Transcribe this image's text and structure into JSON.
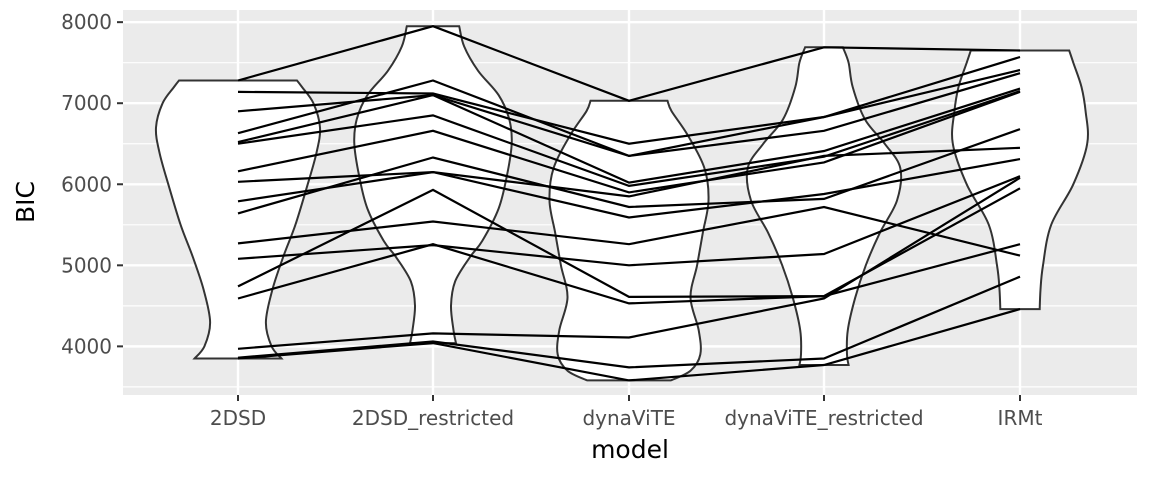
{
  "chart_data": {
    "type": "violin",
    "xlabel": "model",
    "ylabel": "BIC",
    "categories": [
      "2DSD",
      "2DSD_restricted",
      "dynaViTE",
      "dynaViTE_restricted",
      "IRMt"
    ],
    "y_ticks": [
      4000,
      5000,
      6000,
      7000,
      8000
    ],
    "ylim": [
      3400,
      8150
    ],
    "grid": true,
    "subjects": [
      [
        7280,
        7950,
        7030,
        7690,
        7650
      ],
      [
        7140,
        7120,
        6500,
        6830,
        7570
      ],
      [
        6630,
        7280,
        6350,
        6830,
        7410
      ],
      [
        6520,
        7100,
        6350,
        6660,
        7370
      ],
      [
        6900,
        7100,
        6020,
        6410,
        7180
      ],
      [
        6500,
        6850,
        5980,
        6340,
        7150
      ],
      [
        6160,
        6660,
        5900,
        6270,
        7140
      ],
      [
        6030,
        6150,
        5850,
        6350,
        6450
      ],
      [
        5640,
        6330,
        5720,
        5820,
        6680
      ],
      [
        5790,
        6150,
        5590,
        5880,
        6310
      ],
      [
        5270,
        5540,
        5260,
        5720,
        5120
      ],
      [
        5080,
        5250,
        5000,
        5140,
        6100
      ],
      [
        4740,
        5930,
        4610,
        4620,
        5950
      ],
      [
        4590,
        5260,
        4530,
        4620,
        5260
      ],
      [
        3970,
        4160,
        4110,
        4590,
        6080
      ],
      [
        3860,
        4060,
        3740,
        3850,
        4860
      ],
      [
        3850,
        4040,
        3580,
        3770,
        4460
      ]
    ],
    "violins": [
      {
        "category": "2DSD",
        "min": 3850,
        "max": 7280,
        "profile": [
          [
            3850,
            0.53
          ],
          [
            4000,
            0.41
          ],
          [
            4300,
            0.34
          ],
          [
            4700,
            0.42
          ],
          [
            5100,
            0.55
          ],
          [
            5500,
            0.7
          ],
          [
            6000,
            0.85
          ],
          [
            6400,
            0.96
          ],
          [
            6700,
            1.0
          ],
          [
            7000,
            0.92
          ],
          [
            7200,
            0.78
          ],
          [
            7280,
            0.72
          ]
        ]
      },
      {
        "category": "2DSD_restricted",
        "min": 4040,
        "max": 7950,
        "profile": [
          [
            4040,
            0.28
          ],
          [
            4200,
            0.25
          ],
          [
            4500,
            0.22
          ],
          [
            4800,
            0.27
          ],
          [
            5100,
            0.45
          ],
          [
            5300,
            0.6
          ],
          [
            5700,
            0.8
          ],
          [
            6100,
            0.9
          ],
          [
            6500,
            0.96
          ],
          [
            6800,
            0.93
          ],
          [
            7100,
            0.8
          ],
          [
            7400,
            0.55
          ],
          [
            7700,
            0.38
          ],
          [
            7950,
            0.32
          ]
        ]
      },
      {
        "category": "dynaViTE",
        "min": 3580,
        "max": 7030,
        "profile": [
          [
            3580,
            0.51
          ],
          [
            3700,
            0.75
          ],
          [
            3900,
            0.87
          ],
          [
            4200,
            0.85
          ],
          [
            4600,
            0.75
          ],
          [
            5000,
            0.83
          ],
          [
            5400,
            0.9
          ],
          [
            5800,
            0.97
          ],
          [
            6200,
            0.92
          ],
          [
            6600,
            0.72
          ],
          [
            6900,
            0.52
          ],
          [
            7030,
            0.47
          ]
        ]
      },
      {
        "category": "dynaViTE_restricted",
        "min": 3770,
        "max": 7690,
        "profile": [
          [
            3770,
            0.3
          ],
          [
            3900,
            0.28
          ],
          [
            4200,
            0.29
          ],
          [
            4600,
            0.38
          ],
          [
            5000,
            0.51
          ],
          [
            5400,
            0.68
          ],
          [
            5800,
            0.89
          ],
          [
            6200,
            0.93
          ],
          [
            6500,
            0.74
          ],
          [
            6800,
            0.5
          ],
          [
            7200,
            0.35
          ],
          [
            7500,
            0.3
          ],
          [
            7690,
            0.23
          ]
        ]
      },
      {
        "category": "IRMt",
        "min": 4460,
        "max": 7650,
        "profile": [
          [
            4460,
            0.24
          ],
          [
            4700,
            0.25
          ],
          [
            5000,
            0.28
          ],
          [
            5500,
            0.38
          ],
          [
            6000,
            0.65
          ],
          [
            6500,
            0.82
          ],
          [
            6900,
            0.8
          ],
          [
            7200,
            0.75
          ],
          [
            7500,
            0.65
          ],
          [
            7650,
            0.6
          ]
        ]
      }
    ]
  }
}
